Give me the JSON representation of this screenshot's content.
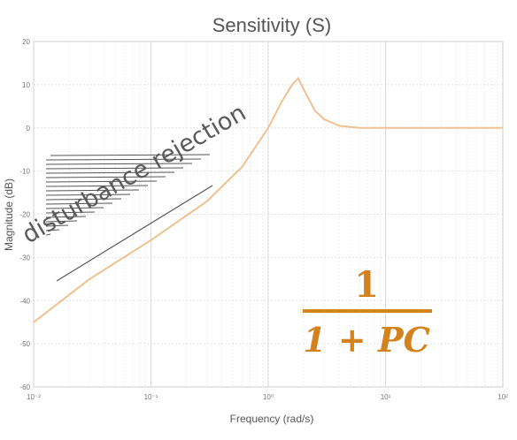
{
  "chart_data": {
    "type": "line",
    "title": "Sensitivity (S)",
    "xlabel": "Frequency (rad/s)",
    "ylabel": "Magnitude (dB)",
    "x_scale": "log",
    "xlim": [
      0.01,
      100
    ],
    "ylim": [
      -60,
      20
    ],
    "x_ticks": [
      0.01,
      0.1,
      1,
      10,
      100
    ],
    "x_tick_labels": [
      "10⁻²",
      "10⁻¹",
      "10⁰",
      "10¹",
      "10²"
    ],
    "y_ticks": [
      20,
      10,
      0,
      -10,
      -20,
      -30,
      -40,
      -50,
      -60
    ],
    "y_tick_labels": [
      "20",
      "10",
      "0",
      "-10",
      "-20",
      "-30",
      "-40",
      "-50",
      "-60"
    ],
    "grid": true,
    "series": [
      {
        "color": "#f0c090",
        "x": [
          0.01,
          0.03,
          0.1,
          0.3,
          0.6,
          1,
          1.3,
          1.6,
          1.8,
          2,
          2.5,
          3,
          4,
          6,
          10,
          20,
          50,
          100
        ],
        "y": [
          -45,
          -35,
          -26,
          -17,
          -9,
          0,
          6,
          10,
          11.5,
          9,
          4,
          2,
          0.5,
          0,
          0,
          0,
          0,
          0
        ]
      }
    ],
    "annotations": {
      "band_label": "disturbance rejection",
      "formula_numerator": "1",
      "formula_denominator": "1 + PC",
      "formula_color": "#d4821e"
    }
  }
}
